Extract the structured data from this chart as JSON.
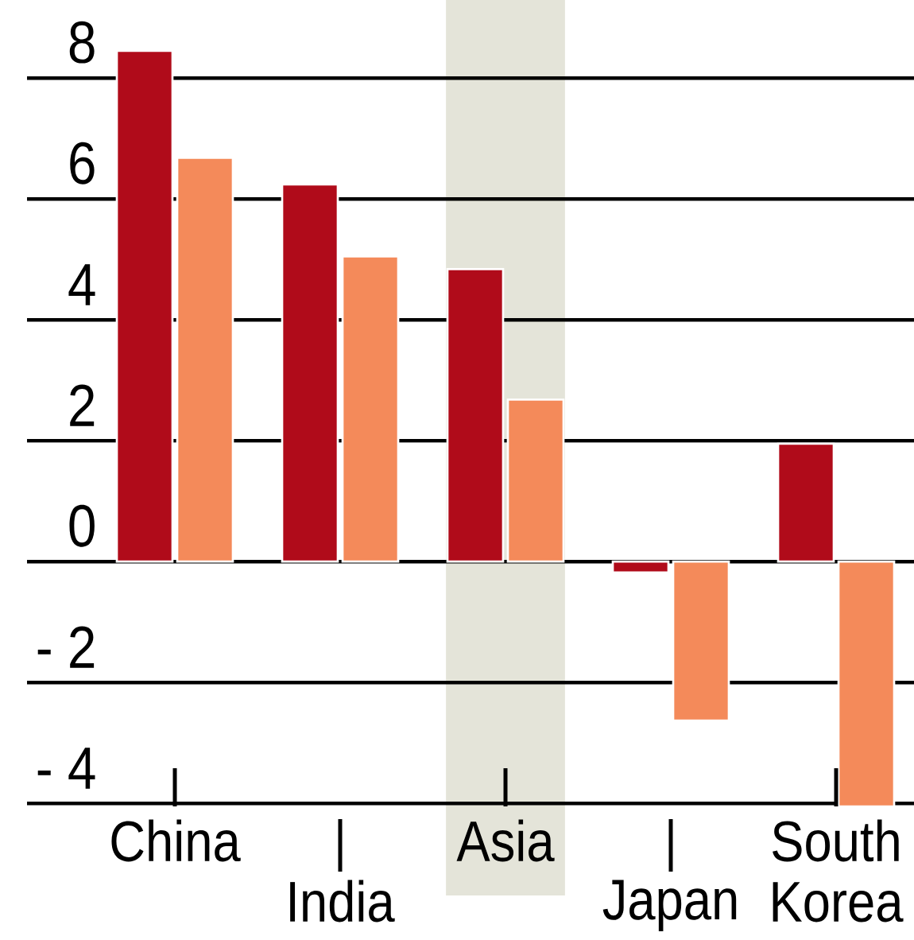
{
  "chart_data": {
    "type": "bar",
    "categories": [
      "China",
      "India",
      "Asia",
      "Japan",
      "South Korea"
    ],
    "series": [
      {
        "color": "#b00b1a",
        "values": [
          8.45,
          6.24,
          4.84,
          -0.18,
          1.95
        ]
      },
      {
        "color": "#f48a5a",
        "values": [
          6.68,
          5.05,
          2.68,
          -2.63,
          -4.05
        ]
      }
    ],
    "ylim": [
      -4.05,
      8.45
    ],
    "yticks": [
      {
        "value": -4,
        "label": "- 4"
      },
      {
        "value": -2,
        "label": "- 2"
      },
      0,
      2,
      4,
      6,
      8
    ],
    "grid": "y",
    "bands": [
      {
        "axis": "x",
        "from": "Asia",
        "to": "Asia",
        "color": "#e4e4d9"
      }
    ]
  }
}
